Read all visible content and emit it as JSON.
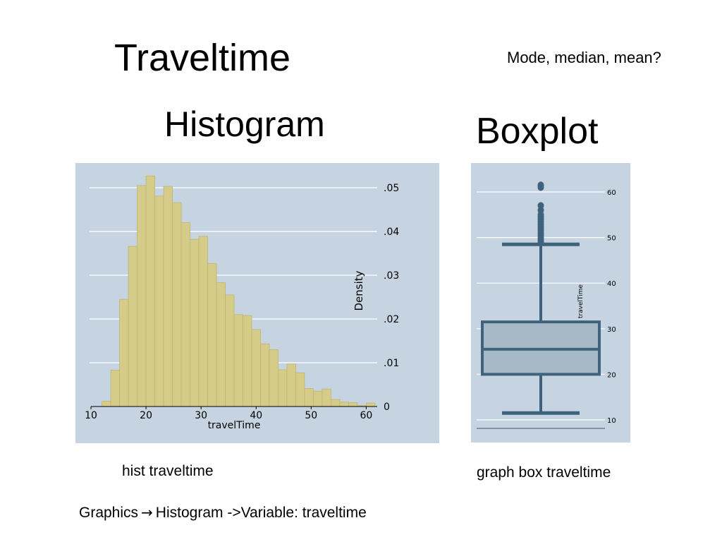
{
  "slide": {
    "title": "Traveltime",
    "note": "Mode, median, mean?",
    "hist_heading": "Histogram",
    "box_heading": "Boxplot",
    "hist_command": "hist traveltime",
    "box_command": "graph box traveltime",
    "menu_path": {
      "part1": "Graphics",
      "part2": "Histogram ->Variable: traveltime"
    }
  },
  "colors": {
    "panel_bg": "#c5d4e0",
    "hist_bar_fill": "#d6cc8a",
    "hist_bar_stroke": "#bfb56e",
    "box_fill": "#a7b8c6",
    "box_stroke": "#3f637d",
    "gridline": "#ffffff"
  },
  "chart_data": [
    {
      "type": "bar",
      "subtype": "histogram",
      "x": [
        12,
        13.6,
        15.2,
        16.8,
        18.4,
        20,
        21.6,
        23.2,
        24.8,
        26.4,
        28,
        29.6,
        31.2,
        32.8,
        34.4,
        36,
        37.6,
        39.2,
        40.8,
        42.4,
        44,
        45.6,
        47.2,
        48.8,
        50.4,
        52,
        53.6,
        55.2,
        56.8,
        58.4,
        60
      ],
      "bin_width": 1.6,
      "values": [
        0.0012,
        0.0083,
        0.0245,
        0.0366,
        0.0505,
        0.0527,
        0.0481,
        0.0503,
        0.0466,
        0.042,
        0.0382,
        0.0389,
        0.0327,
        0.0283,
        0.0255,
        0.021,
        0.0208,
        0.0176,
        0.0143,
        0.013,
        0.0084,
        0.0097,
        0.0077,
        0.0041,
        0.0035,
        0.004,
        0.0016,
        0.001,
        0.0009,
        0.0002,
        0.0008
      ],
      "xlabel": "travelTime",
      "ylabel": "Density",
      "xlim": [
        10,
        62
      ],
      "ylim": [
        0,
        0.05
      ],
      "x_ticks": [
        "10",
        "20",
        "30",
        "40",
        "50",
        "60"
      ],
      "y_ticks": [
        "0",
        ".01",
        ".02",
        ".03",
        ".04",
        ".05"
      ],
      "y_axis_side": "right",
      "grid": true
    },
    {
      "type": "boxplot",
      "variable": "travelTime",
      "ylabel": "travelTime",
      "ylim": [
        10,
        62
      ],
      "y_ticks": [
        "10",
        "20",
        "30",
        "40",
        "50",
        "60"
      ],
      "y_axis_side": "right",
      "grid": true,
      "stats": {
        "lower_whisker": 11.5,
        "q1": 20,
        "median": 25.5,
        "q3": 31.5,
        "upper_whisker": 48.5
      },
      "outliers": [
        49,
        49.5,
        50,
        50.5,
        51,
        51.5,
        52,
        52.5,
        53,
        53.5,
        54,
        54.5,
        55,
        56,
        57,
        61,
        61.5
      ]
    }
  ]
}
